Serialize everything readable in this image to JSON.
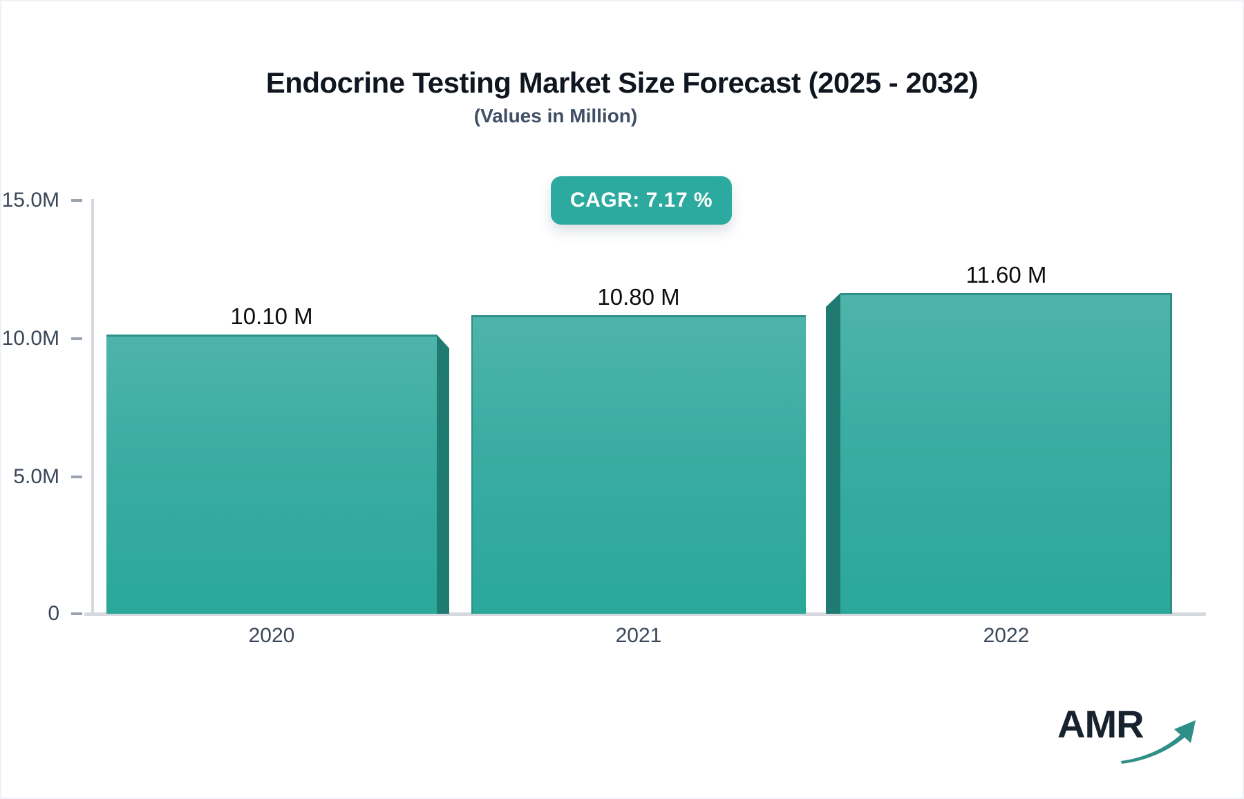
{
  "header": {
    "title": "Endocrine Testing Market Size Forecast (2025 - 2032)",
    "subtitle": "(Values in Million)",
    "cagr_badge": "CAGR: 7.17 %"
  },
  "chart_data": {
    "type": "bar",
    "title": "Endocrine Testing Market Size Forecast (2025 - 2032)",
    "subtitle": "(Values in Million)",
    "categories": [
      "2020",
      "2021",
      "2022"
    ],
    "values": [
      10.1,
      10.8,
      11.6
    ],
    "value_labels": [
      "10.10 M",
      "10.80 M",
      "11.60 M"
    ],
    "y_ticks": [
      "15.0M",
      "10.0M",
      "5.0M",
      "0"
    ],
    "ylim": [
      0,
      15
    ],
    "unit": "Million",
    "cagr": "CAGR: 7.17 %",
    "grid": false,
    "legend": false,
    "bar_color_top": "#4eb4ab",
    "bar_color_bottom": "#2aa89a",
    "bar_side_color": "#1f7a72"
  },
  "logo": {
    "text": "AMR",
    "arrow_color": "#2f8f88"
  },
  "colors": {
    "accent": "#2caa9f",
    "axis_line": "#d6d9df",
    "tick": "#9aa3ae",
    "label": "#3a4759"
  }
}
